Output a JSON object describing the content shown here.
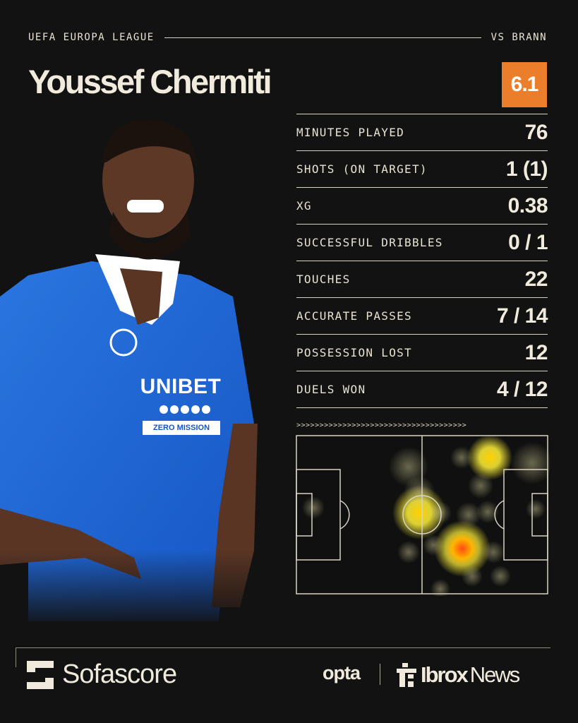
{
  "header": {
    "competition": "UEFA EUROPA LEAGUE",
    "opponent": "VS BRANN"
  },
  "player": {
    "name": "Youssef Chermiti",
    "rating": "6.1",
    "rating_color": "#ea7e2b",
    "shirt_sponsor": "UNIBET",
    "sleeve_text": "ZERO MISSION"
  },
  "stats": [
    {
      "label": "MINUTES PLAYED",
      "value": "76"
    },
    {
      "label": "SHOTS (ON TARGET)",
      "value": "1 (1)"
    },
    {
      "label": "XG",
      "value": "0.38"
    },
    {
      "label": "SUCCESSFUL DRIBBLES",
      "value": "0 / 1"
    },
    {
      "label": "TOUCHES",
      "value": "22"
    },
    {
      "label": "ACCURATE PASSES",
      "value": "7 / 14"
    },
    {
      "label": "POSSESSION LOST",
      "value": "12"
    },
    {
      "label": "DUELS WON",
      "value": "4 / 12"
    }
  ],
  "heatmap": {
    "direction_arrows": ">>>>>>>>>>>>>>>>>>>>>>>>>>>>>>>>>>>>>"
  },
  "footer": {
    "brand": "Sofascore",
    "data_provider": "opta",
    "publisher_bold": "Ibrox",
    "publisher_light": "News"
  }
}
